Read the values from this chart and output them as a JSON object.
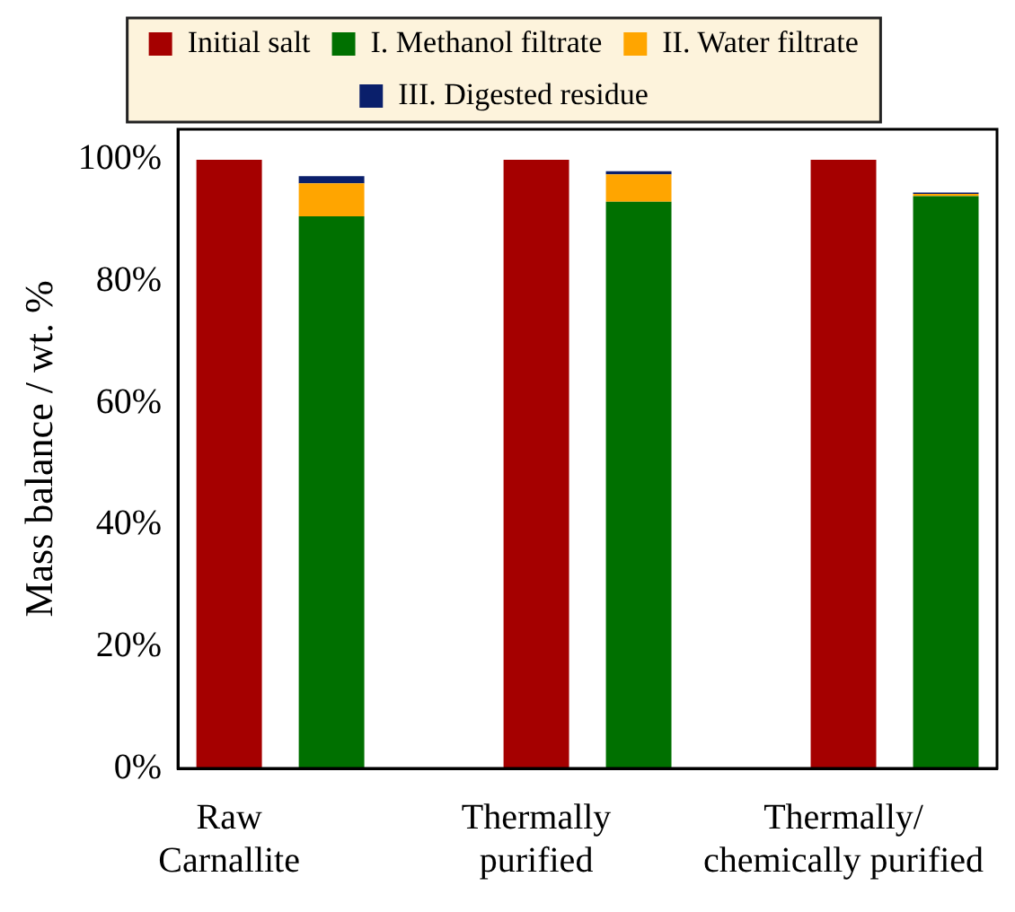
{
  "chart_data": {
    "type": "bar",
    "stacked": true,
    "ylabel": "Mass balance / wt. %",
    "categories": [
      "Raw\nCarnallite",
      null,
      null,
      "Thermally\npurified",
      null,
      null,
      "Thermally/\nchemically purified",
      null
    ],
    "series": [
      {
        "name": "Initial salt",
        "color": "#a50000",
        "values": [
          100,
          null,
          null,
          100,
          null,
          null,
          100,
          null
        ]
      },
      {
        "name": "I. Methanol filtrate",
        "color": "#007000",
        "values": [
          null,
          90.7,
          null,
          null,
          93.1,
          null,
          null,
          94.0
        ]
      },
      {
        "name": "II. Water filtrate",
        "color": "#ffa500",
        "values": [
          null,
          5.4,
          null,
          null,
          4.5,
          null,
          null,
          0.4
        ]
      },
      {
        "name": "III. Digested residue",
        "color": "#0a1f6b",
        "values": [
          null,
          1.2,
          null,
          null,
          0.5,
          null,
          null,
          0.2
        ]
      }
    ],
    "ylim": [
      0,
      105
    ],
    "yticks": [
      {
        "value": 0,
        "label": "0%"
      },
      {
        "value": 20,
        "label": "20%"
      },
      {
        "value": 40,
        "label": "40%"
      },
      {
        "value": 60,
        "label": "60%"
      },
      {
        "value": 80,
        "label": "80%"
      },
      {
        "value": 100,
        "label": "100%"
      }
    ],
    "grid": false,
    "legend": "top"
  }
}
